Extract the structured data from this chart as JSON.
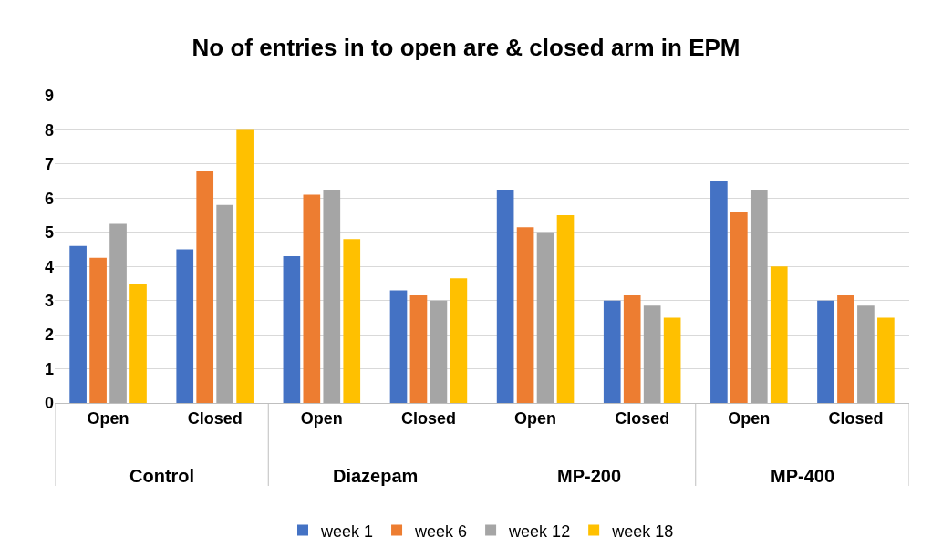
{
  "chart_data": {
    "type": "bar",
    "title": "No of entries in to open are & closed arm in EPM",
    "categories": [
      "Open",
      "Closed",
      "Open",
      "Closed",
      "Open",
      "Closed",
      "Open",
      "Closed"
    ],
    "annotations": [
      "Control",
      "Diazepam",
      "MP-200",
      "MP-400"
    ],
    "series": [
      {
        "name": "week 1",
        "color": "#4472c4",
        "values": [
          4.6,
          4.5,
          4.3,
          3.3,
          6.25,
          3.0,
          6.5,
          3.0
        ]
      },
      {
        "name": "week 6",
        "color": "#ed7d31",
        "values": [
          4.25,
          6.8,
          6.1,
          3.15,
          5.15,
          3.15,
          5.6,
          3.15
        ]
      },
      {
        "name": "week 12",
        "color": "#a5a5a5",
        "values": [
          5.25,
          5.8,
          6.25,
          3.0,
          5.0,
          2.85,
          6.25,
          2.85
        ]
      },
      {
        "name": "week 18",
        "color": "#ffc000",
        "values": [
          3.5,
          8.0,
          4.8,
          3.65,
          5.5,
          2.5,
          4.0,
          2.5
        ]
      }
    ],
    "ylim": [
      0,
      9
    ],
    "yticks": [
      0,
      1,
      2,
      3,
      4,
      5,
      6,
      7,
      8,
      9
    ],
    "grid": "y",
    "legend": "bottom"
  }
}
